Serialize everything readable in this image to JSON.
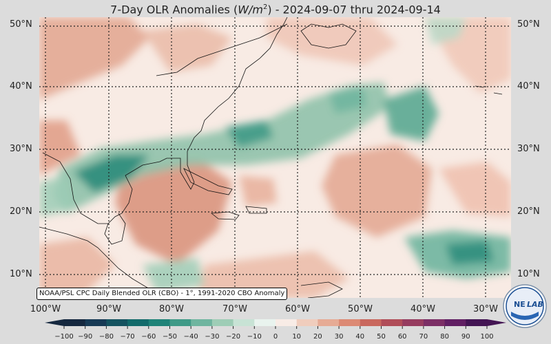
{
  "title": {
    "prefix": "7-Day OLR Anomalies (",
    "unit_var": "W/m",
    "unit_exp": "2",
    "suffix": ") - 2024-09-07 thru 2024-09-14"
  },
  "map": {
    "lat_labels": [
      "50°N",
      "40°N",
      "30°N",
      "20°N",
      "10°N"
    ],
    "lon_labels": [
      "100°W",
      "90°W",
      "80°W",
      "70°W",
      "60°W",
      "50°W",
      "40°W",
      "30°W"
    ],
    "credit": "NOAA/PSL CPC Daily Blended OLR (CBO) - 1°, 1991-2020 CBO Anomaly",
    "extent": {
      "lon_min": -101.5,
      "lon_max": -26.5,
      "lat_min": 5,
      "lat_max": 50.5
    }
  },
  "colorbar": {
    "ticks": [
      "−100",
      "−90",
      "−80",
      "−70",
      "−60",
      "−50",
      "−40",
      "−30",
      "−20",
      "−10",
      "0",
      "10",
      "20",
      "30",
      "40",
      "50",
      "60",
      "70",
      "80",
      "90",
      "100"
    ],
    "colors": [
      "#15283f",
      "#173a55",
      "#155360",
      "#136b6b",
      "#1f8378",
      "#3f9a87",
      "#6fb59f",
      "#9ecdb6",
      "#c8e3d5",
      "#e9f3ee",
      "#f8ece6",
      "#f0cdbd",
      "#e6ab95",
      "#dc8a74",
      "#c9685e",
      "#b04d58",
      "#963c5f",
      "#7b2e65",
      "#611f63",
      "#431553"
    ]
  },
  "logo": {
    "text_left": "NE",
    "text_right": "LAB"
  }
}
